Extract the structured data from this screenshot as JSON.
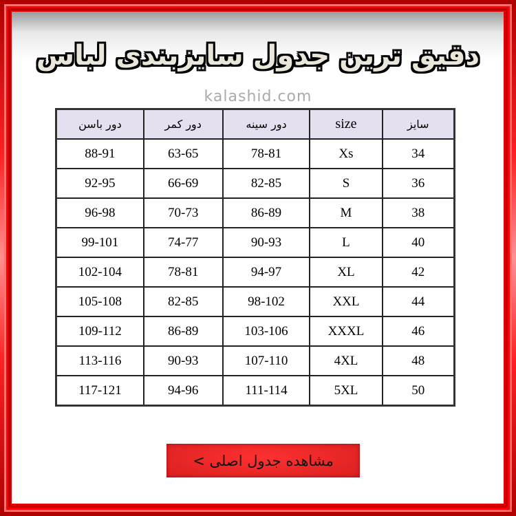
{
  "title": "دقیق ترین جدول سایزبندی لباس",
  "watermark": "kalashid.com",
  "table": {
    "headers": [
      "سایز",
      "size",
      "دور سینه",
      "دور کمر",
      "دور باسن"
    ],
    "rows": [
      [
        "34",
        "Xs",
        "78-81",
        "63-65",
        "88-91"
      ],
      [
        "36",
        "S",
        "82-85",
        "66-69",
        "92-95"
      ],
      [
        "38",
        "M",
        "86-89",
        "70-73",
        "96-98"
      ],
      [
        "40",
        "L",
        "90-93",
        "74-77",
        "99-101"
      ],
      [
        "42",
        "XL",
        "94-97",
        "78-81",
        "102-104"
      ],
      [
        "44",
        "XXL",
        "98-102",
        "82-85",
        "105-108"
      ],
      [
        "46",
        "XXXL",
        "103-106",
        "86-89",
        "109-112"
      ],
      [
        "48",
        "4XL",
        "107-110",
        "90-93",
        "113-116"
      ],
      [
        "50",
        "5XL",
        "111-114",
        "94-96",
        "117-121"
      ]
    ]
  },
  "button": {
    "label": "مشاهده جدول اصلی >"
  },
  "colors": {
    "frame": "#ff0000",
    "header_bg": "#e4e0f0",
    "button": "#ff2a2a"
  }
}
